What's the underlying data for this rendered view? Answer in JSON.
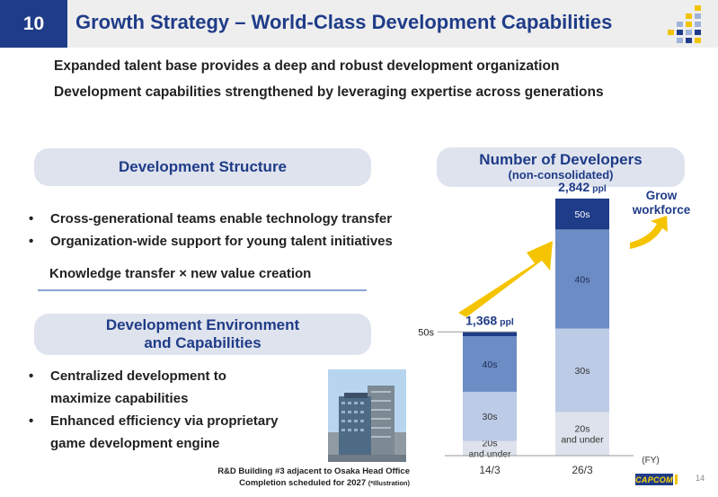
{
  "header": {
    "page_number": "10",
    "title": "Growth Strategy – World-Class Development Capabilities"
  },
  "intro": {
    "line1": "Expanded talent base provides a deep and robust development organization",
    "line2": "Development capabilities strengthened by leveraging expertise across generations"
  },
  "structure": {
    "heading": "Development Structure",
    "bullets": [
      "Cross-generational teams enable technology transfer",
      "Organization-wide support for young talent initiatives"
    ],
    "knowledge": "Knowledge transfer × new value creation"
  },
  "environment": {
    "heading_line1": "Development Environment",
    "heading_line2": "and Capabilities",
    "bullet1_line1": "Centralized development to",
    "bullet1_line2": "maximize capabilities",
    "bullet2_line1": "Enhanced efficiency via proprietary",
    "bullet2_line2": "game development engine",
    "caption_line1": "R&D Building #3 adjacent to Osaka Head Office",
    "caption_line2": "Completion scheduled for 2027",
    "caption_note": "(*Illustration)"
  },
  "developers": {
    "heading": "Number of Developers",
    "subheading": "(non-consolidated)",
    "grow_line1": "Grow",
    "grow_line2": "workforce",
    "side_label": "50s",
    "fy_label": "(FY)"
  },
  "chart_data": {
    "type": "bar",
    "stacked": true,
    "categories": [
      "14/3",
      "26/3"
    ],
    "totals": [
      1368,
      2842
    ],
    "total_labels": [
      "1,368",
      "2,842"
    ],
    "total_unit": "ppl",
    "series": [
      {
        "name": "20s and under",
        "values": [
          164,
          482
        ],
        "color": "#dde2ec",
        "text_color": "#333333"
      },
      {
        "name": "30s",
        "values": [
          542,
          923
        ],
        "color": "#bccbe6",
        "text_color": "#333333"
      },
      {
        "name": "40s",
        "values": [
          614,
          1095
        ],
        "color": "#6b8cc4",
        "text_color": "#1d2d55"
      },
      {
        "name": "50s",
        "values": [
          48,
          342
        ],
        "color": "#1f3c88",
        "text_color": "#ffffff"
      }
    ],
    "segment_labels": [
      [
        "20s\nand under",
        "30s",
        "40s",
        ""
      ],
      [
        "20s\nand under",
        "30s",
        "40s",
        "50s"
      ]
    ],
    "ylim": [
      0,
      3000
    ],
    "xlabel": "(FY)",
    "ylabel": ""
  },
  "footer": {
    "logo_text": "CAPCOM",
    "slide_number": "14"
  },
  "colors": {
    "brand_blue": "#1f3c88",
    "pill_bg": "#dfe3ee",
    "arrow_yellow": "#f5c400"
  }
}
